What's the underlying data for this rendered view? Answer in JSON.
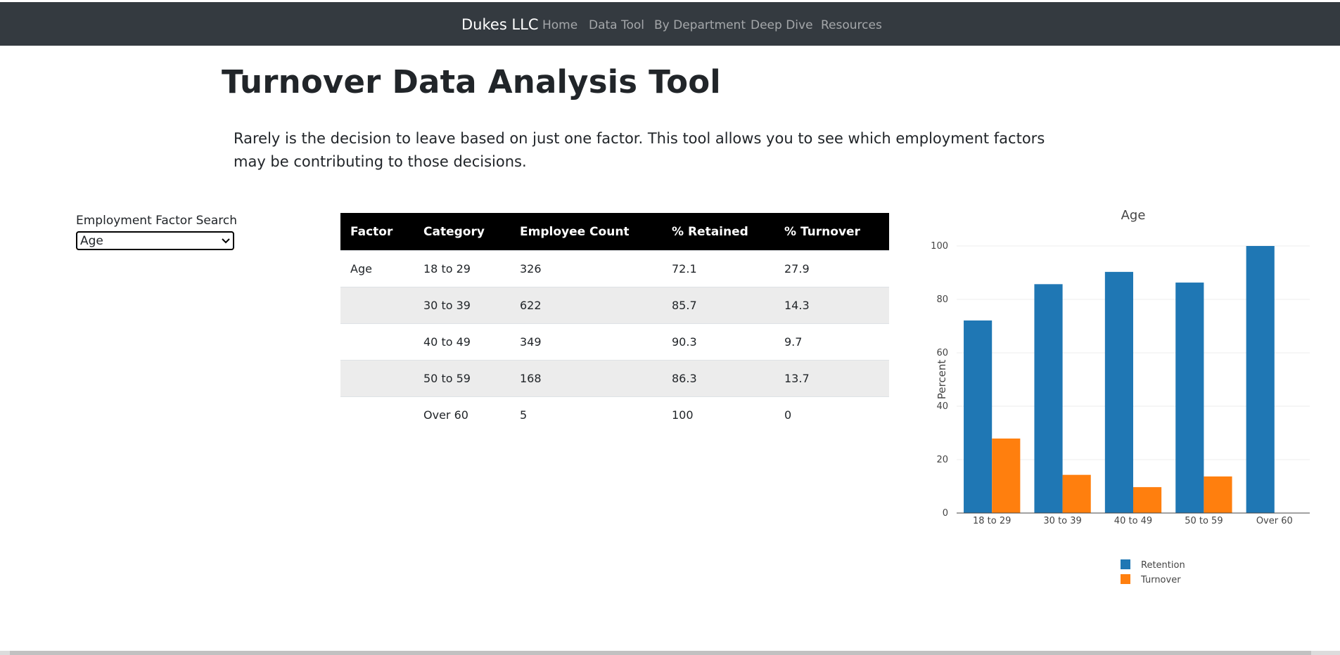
{
  "navbar": {
    "brand": "Dukes LLC",
    "links": [
      "Home",
      "Data Tool",
      "By Department",
      "Deep Dive",
      "Resources"
    ]
  },
  "page": {
    "title": "Turnover Data Analysis Tool",
    "intro": "Rarely is the decision to leave based on just one factor. This tool allows you to see which employment factors may be contributing to those decisions."
  },
  "search": {
    "label": "Employment Factor Search",
    "selected": "Age"
  },
  "table": {
    "headers": [
      "Factor",
      "Category",
      "Employee Count",
      "% Retained",
      "% Turnover"
    ],
    "rows": [
      [
        "Age",
        "18 to 29",
        "326",
        "72.1",
        "27.9"
      ],
      [
        "",
        "30 to 39",
        "622",
        "85.7",
        "14.3"
      ],
      [
        "",
        "40 to 49",
        "349",
        "90.3",
        "9.7"
      ],
      [
        "",
        "50 to 59",
        "168",
        "86.3",
        "13.7"
      ],
      [
        "",
        "Over 60",
        "5",
        "100",
        "0"
      ]
    ]
  },
  "chart_data": {
    "type": "bar",
    "title": "Age",
    "xlabel": "",
    "ylabel": "Percent",
    "categories": [
      "18 to 29",
      "30 to 39",
      "40 to 49",
      "50 to 59",
      "Over 60"
    ],
    "series": [
      {
        "name": "Retention",
        "values": [
          72.1,
          85.7,
          90.3,
          86.3,
          100
        ],
        "color": "#1f77b4"
      },
      {
        "name": "Turnover",
        "values": [
          27.9,
          14.3,
          9.7,
          13.7,
          0
        ],
        "color": "#ff7f0e"
      }
    ],
    "ylim": [
      0,
      100
    ],
    "yticks": [
      0,
      20,
      40,
      60,
      80,
      100
    ],
    "grid": true,
    "legend": "bottom"
  }
}
